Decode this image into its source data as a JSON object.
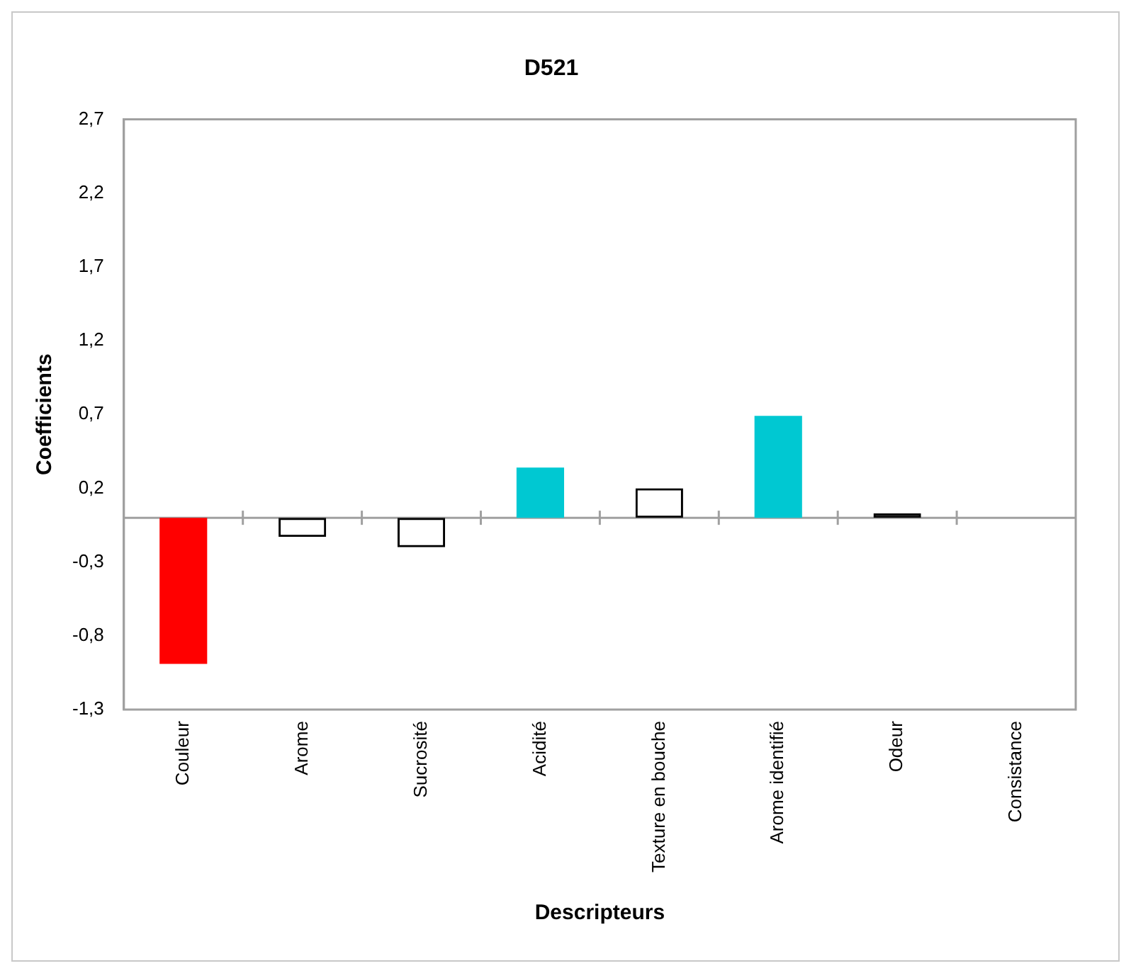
{
  "chart_data": {
    "type": "bar",
    "title": "D521",
    "xlabel": "Descripteurs",
    "ylabel": "Coefficients",
    "categories": [
      "Couleur",
      "Arome",
      "Sucrosité",
      "Acidité",
      "Texture en bouche",
      "Arome identifié",
      "Odeur",
      "Consistance"
    ],
    "values": [
      -0.99,
      -0.13,
      -0.2,
      0.34,
      0.2,
      0.69,
      0.03,
      0
    ],
    "colors": [
      "#ff0000",
      "#000000",
      "#000000",
      "#00c8d2",
      "#000000",
      "#00c8d2",
      "#000000",
      "#000000"
    ],
    "ylim": [
      -1.3,
      2.7
    ],
    "yticks": [
      {
        "value": -1.3,
        "label": "-1,3"
      },
      {
        "value": -0.8,
        "label": "-0,8"
      },
      {
        "value": -0.3,
        "label": "-0,3"
      },
      {
        "value": 0.2,
        "label": "0,2"
      },
      {
        "value": 0.7,
        "label": "0,7"
      },
      {
        "value": 1.2,
        "label": "1,2"
      },
      {
        "value": 1.7,
        "label": "1,7"
      },
      {
        "value": 2.2,
        "label": "2,2"
      },
      {
        "value": 2.7,
        "label": "2,7"
      }
    ],
    "grid": false,
    "legend": false
  }
}
